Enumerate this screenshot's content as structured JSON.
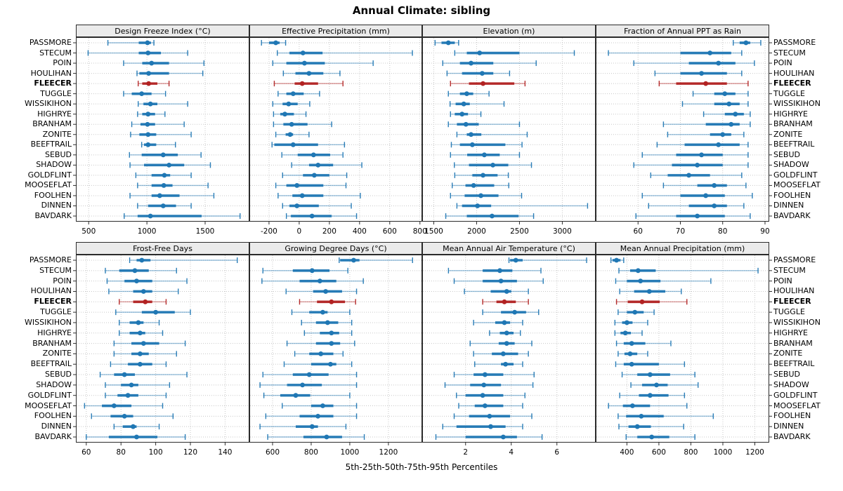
{
  "title": "Annual Climate: sibling",
  "footer": "5th-25th-50th-75th-95th Percentiles",
  "highlight_station": "FLEECER",
  "colors": {
    "series_normal": "#1f77b4",
    "series_highlight": "#b22222",
    "strip_bg": "#ebebeb",
    "panel_bg": "#ffffff",
    "border": "#2b2b2b",
    "grid": "#c8c8c8",
    "text": "#000000"
  },
  "stations": [
    "PASSMORE",
    "STECUM",
    "POIN",
    "HOULIHAN",
    "FLEECER",
    "TUGGLE",
    "WISSIKIHON",
    "HIGHRYE",
    "BRANHAM",
    "ZONITE",
    "BEEFTRAIL",
    "SEBUD",
    "SHADOW",
    "GOLDFLINT",
    "MOOSEFLAT",
    "FOOLHEN",
    "DINNEN",
    "BAVDARK"
  ],
  "chart_data": {
    "type": "dotplot-percentiles",
    "percentile_levels": [
      5,
      25,
      50,
      75,
      95
    ],
    "legend": "5th-25th-50th-75th-95th Percentiles",
    "grid": "dotted",
    "panels": [
      {
        "title": "Design Freeze Index (°C)",
        "row": 0,
        "col": 0,
        "xlim": [
          390,
          1880
        ],
        "ticks": [
          500,
          1000,
          1500
        ],
        "values": [
          [
            665,
            930,
            1005,
            1035,
            1060
          ],
          [
            495,
            930,
            1010,
            1120,
            1350
          ],
          [
            800,
            960,
            1040,
            1190,
            1490
          ],
          [
            915,
            935,
            1015,
            1190,
            1480
          ],
          [
            925,
            960,
            1015,
            1090,
            1190
          ],
          [
            800,
            870,
            955,
            1040,
            1160
          ],
          [
            925,
            970,
            1030,
            1090,
            1350
          ],
          [
            920,
            960,
            1010,
            1070,
            1155
          ],
          [
            870,
            945,
            1005,
            1070,
            1320
          ],
          [
            860,
            935,
            1010,
            1080,
            1380
          ],
          [
            955,
            975,
            1010,
            1080,
            1245
          ],
          [
            850,
            955,
            1140,
            1265,
            1465
          ],
          [
            855,
            975,
            1190,
            1320,
            1545
          ],
          [
            905,
            1040,
            1150,
            1200,
            1380
          ],
          [
            920,
            1040,
            1145,
            1220,
            1525
          ],
          [
            855,
            1040,
            1110,
            1280,
            1575
          ],
          [
            920,
            1010,
            1140,
            1250,
            1380
          ],
          [
            805,
            920,
            1030,
            1470,
            1800
          ]
        ]
      },
      {
        "title": "Effective Precipitation (mm)",
        "row": 0,
        "col": 1,
        "xlim": [
          -330,
          815
        ],
        "ticks": [
          -200,
          0,
          200,
          400,
          600,
          800
        ],
        "values": [
          [
            -250,
            -200,
            -155,
            -130,
            -90
          ],
          [
            -145,
            -65,
            25,
            155,
            750
          ],
          [
            -175,
            -85,
            35,
            170,
            490
          ],
          [
            -105,
            -25,
            65,
            160,
            270
          ],
          [
            -165,
            -30,
            20,
            125,
            290
          ],
          [
            -140,
            -85,
            -40,
            30,
            135
          ],
          [
            -175,
            -110,
            -70,
            -10,
            70
          ],
          [
            -170,
            -125,
            -95,
            -35,
            45
          ],
          [
            -170,
            -105,
            -50,
            55,
            215
          ],
          [
            -155,
            -90,
            -60,
            -40,
            65
          ],
          [
            -180,
            -165,
            -40,
            125,
            300
          ],
          [
            -115,
            -10,
            95,
            205,
            290
          ],
          [
            -50,
            65,
            125,
            225,
            415
          ],
          [
            -110,
            25,
            100,
            200,
            315
          ],
          [
            -155,
            -85,
            -15,
            160,
            310
          ],
          [
            -140,
            -45,
            20,
            160,
            405
          ],
          [
            -110,
            -65,
            -15,
            130,
            345
          ],
          [
            -85,
            -55,
            85,
            215,
            380
          ]
        ]
      },
      {
        "title": "Elevation (m)",
        "row": 0,
        "col": 2,
        "xlim": [
          1365,
          3390
        ],
        "ticks": [
          1500,
          2000,
          2500,
          3000
        ],
        "values": [
          [
            1515,
            1590,
            1670,
            1745,
            1790
          ],
          [
            1745,
            1885,
            2035,
            2500,
            3140
          ],
          [
            1605,
            1805,
            1935,
            2195,
            2695
          ],
          [
            1655,
            1830,
            2065,
            2195,
            2385
          ],
          [
            1695,
            1910,
            2075,
            2440,
            2565
          ],
          [
            1670,
            1805,
            1885,
            1960,
            2145
          ],
          [
            1690,
            1755,
            1850,
            1920,
            2320
          ],
          [
            1695,
            1745,
            1830,
            1900,
            2050
          ],
          [
            1670,
            1770,
            1875,
            2025,
            2500
          ],
          [
            1770,
            1885,
            1935,
            2055,
            2590
          ],
          [
            1705,
            1805,
            1950,
            2335,
            2530
          ],
          [
            1695,
            1890,
            2090,
            2270,
            2500
          ],
          [
            1740,
            1910,
            2190,
            2370,
            2640
          ],
          [
            1745,
            1950,
            2075,
            2245,
            2370
          ],
          [
            1715,
            1870,
            1965,
            2205,
            2375
          ],
          [
            1695,
            1860,
            2050,
            2255,
            2525
          ],
          [
            1770,
            1830,
            2010,
            2170,
            3295
          ],
          [
            1640,
            1885,
            2180,
            2490,
            2665
          ]
        ]
      },
      {
        "title": "Fraction of Annual PPT as Rain",
        "row": 0,
        "col": 3,
        "xlim": [
          50,
          91
        ],
        "ticks": [
          60,
          70,
          80,
          90
        ],
        "values": [
          [
            82.5,
            84,
            85.5,
            86.5,
            89
          ],
          [
            53,
            70,
            77,
            82,
            84.5
          ],
          [
            59,
            72,
            79,
            83,
            87.5
          ],
          [
            64,
            70,
            75,
            81,
            84.5
          ],
          [
            65,
            69,
            76,
            81,
            86
          ],
          [
            73,
            78,
            80.5,
            83,
            86
          ],
          [
            70.5,
            78,
            81.5,
            84,
            86
          ],
          [
            75.5,
            80.5,
            83,
            85,
            86.5
          ],
          [
            66,
            76,
            82,
            84,
            86.5
          ],
          [
            67,
            77,
            80,
            82,
            85
          ],
          [
            64.5,
            71,
            79,
            84,
            86
          ],
          [
            61,
            69,
            75,
            80,
            86
          ],
          [
            59,
            68,
            74,
            80,
            86
          ],
          [
            63,
            67,
            72,
            77,
            84.5
          ],
          [
            66,
            74,
            78,
            81,
            85.5
          ],
          [
            61,
            70,
            76,
            80.5,
            87
          ],
          [
            62.5,
            72,
            78,
            81,
            85
          ],
          [
            59.5,
            69,
            74,
            80.5,
            86.5
          ]
        ]
      },
      {
        "title": "Frost-Free Days",
        "row": 1,
        "col": 0,
        "xlim": [
          54,
          154
        ],
        "ticks": [
          60,
          80,
          100,
          120,
          140
        ],
        "values": [
          [
            85,
            89,
            92,
            97,
            147
          ],
          [
            71,
            79,
            88,
            96,
            112
          ],
          [
            72,
            82,
            89,
            98,
            118
          ],
          [
            73,
            87,
            93,
            98,
            113
          ],
          [
            79,
            87,
            94,
            98,
            106
          ],
          [
            77,
            92,
            100,
            111,
            120
          ],
          [
            79,
            85,
            90,
            93,
            102
          ],
          [
            79,
            85,
            91,
            94,
            104
          ],
          [
            76,
            86,
            93,
            102,
            117
          ],
          [
            76,
            86,
            91,
            96,
            112
          ],
          [
            74,
            84,
            91,
            98,
            106
          ],
          [
            68,
            76,
            82,
            88,
            118
          ],
          [
            71,
            80,
            86,
            90,
            108
          ],
          [
            71,
            78,
            84,
            90,
            106
          ],
          [
            59,
            69,
            76,
            86,
            104
          ],
          [
            63,
            74,
            82,
            87,
            110
          ],
          [
            76,
            81,
            87,
            89,
            102
          ],
          [
            60,
            73,
            89,
            101,
            117
          ]
        ]
      },
      {
        "title": "Growing Degree Days (°C)",
        "row": 1,
        "col": 1,
        "xlim": [
          480,
          1375
        ],
        "ticks": [
          600,
          800,
          1000,
          1200
        ],
        "values": [
          [
            945,
            950,
            1020,
            1050,
            1325
          ],
          [
            550,
            705,
            805,
            895,
            990
          ],
          [
            545,
            740,
            845,
            930,
            1070
          ],
          [
            670,
            810,
            875,
            960,
            1035
          ],
          [
            740,
            830,
            905,
            975,
            1030
          ],
          [
            700,
            790,
            860,
            885,
            1000
          ],
          [
            750,
            825,
            885,
            940,
            1010
          ],
          [
            765,
            845,
            905,
            945,
            1010
          ],
          [
            675,
            825,
            905,
            950,
            1025
          ],
          [
            715,
            790,
            850,
            915,
            965
          ],
          [
            660,
            800,
            900,
            930,
            1010
          ],
          [
            550,
            705,
            790,
            890,
            1035
          ],
          [
            535,
            675,
            755,
            855,
            1035
          ],
          [
            555,
            640,
            720,
            795,
            1000
          ],
          [
            650,
            800,
            860,
            915,
            1035
          ],
          [
            565,
            740,
            835,
            915,
            1035
          ],
          [
            535,
            720,
            805,
            835,
            980
          ],
          [
            575,
            760,
            880,
            960,
            1075
          ]
        ]
      },
      {
        "title": "Mean Annual Air Temperature (°C)",
        "row": 1,
        "col": 2,
        "xlim": [
          0.1,
          7.7
        ],
        "ticks": [
          2,
          4,
          6
        ],
        "values": [
          [
            3.9,
            3.95,
            4.2,
            4.5,
            7.3
          ],
          [
            1.25,
            2.75,
            3.5,
            4.05,
            5.3
          ],
          [
            1.5,
            2.75,
            3.55,
            4.25,
            5.4
          ],
          [
            1.95,
            3.1,
            3.8,
            4.0,
            4.75
          ],
          [
            2.75,
            3.35,
            3.7,
            4.2,
            4.75
          ],
          [
            2.75,
            3.55,
            4.15,
            4.65,
            5.2
          ],
          [
            2.35,
            3.3,
            3.7,
            3.95,
            4.5
          ],
          [
            3.05,
            3.5,
            3.8,
            4.1,
            4.4
          ],
          [
            2.2,
            3.45,
            3.8,
            4.15,
            4.9
          ],
          [
            2.35,
            3.15,
            3.65,
            4.3,
            4.75
          ],
          [
            2.4,
            3.55,
            3.75,
            4.1,
            4.5
          ],
          [
            1.5,
            2.35,
            2.85,
            3.65,
            5.0
          ],
          [
            1.1,
            2.2,
            2.8,
            3.55,
            4.95
          ],
          [
            1.6,
            2.0,
            2.75,
            3.65,
            4.6
          ],
          [
            1.7,
            2.4,
            2.85,
            3.65,
            4.5
          ],
          [
            1.5,
            2.15,
            3.05,
            3.95,
            4.9
          ],
          [
            1.0,
            1.6,
            3.1,
            3.75,
            4.5
          ],
          [
            0.7,
            2.0,
            3.65,
            4.25,
            5.35
          ]
        ]
      },
      {
        "title": "Mean Annual Precipitation (mm)",
        "row": 1,
        "col": 3,
        "xlim": [
          205,
          1290
        ],
        "ticks": [
          400,
          600,
          800,
          1000,
          1200
        ],
        "values": [
          [
            300,
            310,
            335,
            360,
            380
          ],
          [
            350,
            420,
            470,
            580,
            1220
          ],
          [
            330,
            400,
            485,
            610,
            925
          ],
          [
            355,
            445,
            540,
            640,
            740
          ],
          [
            335,
            405,
            495,
            605,
            775
          ],
          [
            345,
            400,
            450,
            505,
            570
          ],
          [
            325,
            370,
            400,
            435,
            530
          ],
          [
            325,
            360,
            390,
            425,
            495
          ],
          [
            335,
            380,
            430,
            515,
            675
          ],
          [
            345,
            385,
            420,
            465,
            530
          ],
          [
            330,
            380,
            430,
            600,
            760
          ],
          [
            370,
            465,
            545,
            670,
            825
          ],
          [
            425,
            495,
            585,
            655,
            845
          ],
          [
            355,
            475,
            545,
            660,
            760
          ],
          [
            285,
            375,
            435,
            545,
            775
          ],
          [
            345,
            395,
            490,
            630,
            940
          ],
          [
            350,
            410,
            465,
            550,
            755
          ],
          [
            395,
            465,
            555,
            665,
            825
          ]
        ]
      }
    ]
  }
}
